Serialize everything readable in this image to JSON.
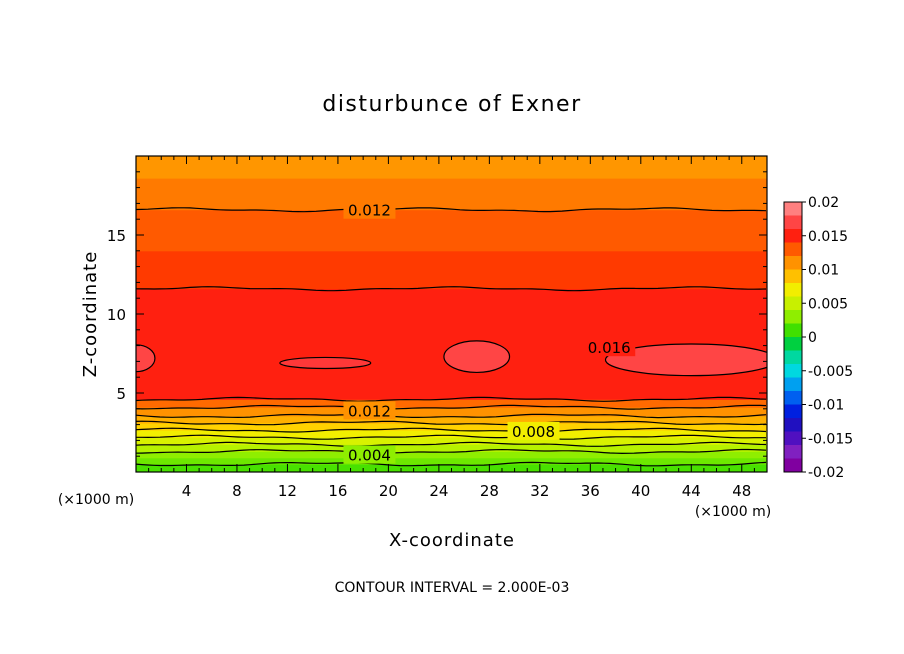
{
  "chart_data": {
    "type": "contour",
    "title": "disturbunce of Exner",
    "xlabel": "X-coordinate",
    "ylabel": "Z-coordinate",
    "x_unit_left": "(×1000 m)",
    "x_unit_right": "(×1000 m)",
    "x_ticks": [
      "4",
      "8",
      "12",
      "16",
      "20",
      "24",
      "28",
      "32",
      "36",
      "40",
      "44",
      "48"
    ],
    "y_ticks": [
      "5",
      "10",
      "15"
    ],
    "xlim": [
      0,
      50
    ],
    "ylim": [
      0,
      20
    ],
    "footer": "CONTOUR INTERVAL = 2.000E-03",
    "colorbar": {
      "labels": [
        "0.02",
        "0.015",
        "0.01",
        "0.005",
        "0",
        "-0.005",
        "-0.01",
        "-0.015",
        "-0.02"
      ],
      "range": [
        -0.02,
        0.02
      ]
    },
    "contour_labels": [
      {
        "text": "0.012",
        "x": 18.5,
        "z": 16.6
      },
      {
        "text": "0.016",
        "x": 37.5,
        "z": 7.9
      },
      {
        "text": "0.012",
        "x": 18.5,
        "z": 3.9
      },
      {
        "text": "0.008",
        "x": 31.5,
        "z": 2.6
      },
      {
        "text": "0.004",
        "x": 18.5,
        "z": 1.1
      }
    ],
    "bands": [
      {
        "z": [
          0,
          0.5
        ],
        "color": "#48e100"
      },
      {
        "z": [
          0.5,
          0.9
        ],
        "color": "#6de800"
      },
      {
        "z": [
          0.9,
          1.3
        ],
        "color": "#8fee00"
      },
      {
        "z": [
          1.3,
          1.75
        ],
        "color": "#b6f200"
      },
      {
        "z": [
          1.75,
          2.2
        ],
        "color": "#d8f200"
      },
      {
        "z": [
          2.2,
          2.65
        ],
        "color": "#f2ee00"
      },
      {
        "z": [
          2.65,
          3.1
        ],
        "color": "#ffd200"
      },
      {
        "z": [
          3.1,
          3.55
        ],
        "color": "#ffb000"
      },
      {
        "z": [
          3.55,
          4.1
        ],
        "color": "#ff9200"
      },
      {
        "z": [
          4.1,
          4.6
        ],
        "color": "#ff6a00"
      },
      {
        "z": [
          4.6,
          11.6
        ],
        "color": "#ff2010"
      },
      {
        "z": [
          11.6,
          14.0
        ],
        "color": "#ff3a00"
      },
      {
        "z": [
          14.0,
          16.6
        ],
        "color": "#ff5a00"
      },
      {
        "z": [
          16.6,
          18.6
        ],
        "color": "#ff7a00"
      },
      {
        "z": [
          18.6,
          20
        ],
        "color": "#ff9600"
      }
    ],
    "contour_lines_z": [
      0.5,
      1.3,
      1.75,
      2.2,
      2.65,
      3.1,
      3.55,
      4.1,
      4.6,
      11.6,
      16.6
    ],
    "blobs": [
      {
        "cx": 0.0,
        "cz": 7.2,
        "rx": 1.5,
        "rz": 0.85,
        "color": "#ff4545"
      },
      {
        "cx": 27.0,
        "cz": 7.3,
        "rx": 2.6,
        "rz": 1.0,
        "color": "#ff4545"
      },
      {
        "cx": 44.0,
        "cz": 7.1,
        "rx": 6.8,
        "rz": 1.0,
        "color": "#ff4545"
      },
      {
        "cx": 15.0,
        "cz": 6.9,
        "rx": 3.6,
        "rz": 0.35,
        "color": "#ff3838"
      }
    ]
  }
}
